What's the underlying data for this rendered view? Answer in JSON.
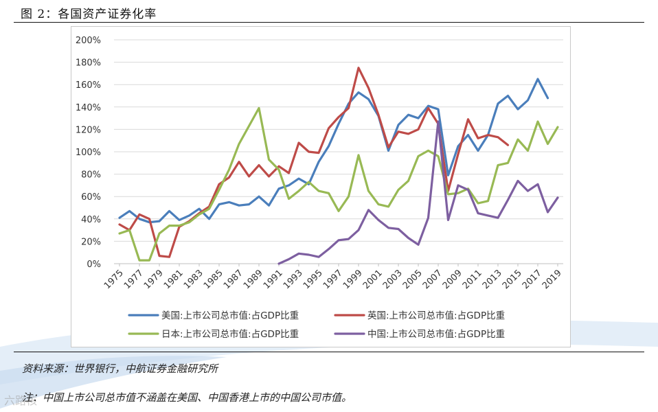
{
  "header": {
    "figure_title": "图 2：各国资产证券化率"
  },
  "footer": {
    "source": "资料来源：世界银行，中航证券金融研究所",
    "note": "注：中国上市公司总市值不涵盖在美国、中国香港上市的中国公司市值。",
    "watermark": "六路核"
  },
  "colors": {
    "us": "#4a7ebb",
    "uk": "#be4b48",
    "japan": "#98b954",
    "china": "#7d5fa0",
    "grid": "#d9d9d9",
    "axis": "#bfbfbf"
  },
  "chart_data": {
    "type": "line",
    "title": "",
    "xlabel": "",
    "ylabel": "",
    "ylim": [
      0,
      200
    ],
    "yticks": [
      "0%",
      "20%",
      "40%",
      "60%",
      "80%",
      "100%",
      "120%",
      "140%",
      "160%",
      "180%",
      "200%"
    ],
    "x_tick_labels": [
      "1975",
      "1977",
      "1979",
      "1981",
      "1983",
      "1985",
      "1987",
      "1989",
      "1991",
      "1993",
      "1995",
      "1997",
      "1999",
      "2001",
      "2003",
      "2005",
      "2007",
      "2009",
      "2011",
      "2013",
      "2015",
      "2017",
      "2019"
    ],
    "grid": "horizontal",
    "legend_position": "bottom",
    "x": [
      1975,
      1976,
      1977,
      1978,
      1979,
      1980,
      1981,
      1982,
      1983,
      1984,
      1985,
      1986,
      1987,
      1988,
      1989,
      1990,
      1991,
      1992,
      1993,
      1994,
      1995,
      1996,
      1997,
      1998,
      1999,
      2000,
      2001,
      2002,
      2003,
      2004,
      2005,
      2006,
      2007,
      2008,
      2009,
      2010,
      2011,
      2012,
      2013,
      2014,
      2015,
      2016,
      2017,
      2018,
      2019
    ],
    "series": [
      {
        "name": "美国:上市公司总市值:占GDP比重",
        "color_key": "us",
        "values": [
          41,
          47,
          40,
          37,
          38,
          47,
          39,
          43,
          49,
          40,
          53,
          55,
          52,
          53,
          60,
          52,
          67,
          70,
          76,
          71,
          91,
          105,
          125,
          143,
          153,
          147,
          132,
          101,
          124,
          133,
          130,
          141,
          138,
          79,
          105,
          115,
          101,
          115,
          143,
          150,
          138,
          146,
          165,
          148,
          null
        ]
      },
      {
        "name": "英国:上市公司总市值:占GDP比重",
        "color_key": "uk",
        "values": [
          35,
          30,
          44,
          40,
          7,
          6,
          33,
          38,
          45,
          51,
          71,
          77,
          91,
          78,
          88,
          78,
          87,
          81,
          108,
          100,
          99,
          121,
          131,
          139,
          175,
          157,
          133,
          104,
          118,
          116,
          120,
          139,
          125,
          65,
          98,
          129,
          112,
          115,
          113,
          106,
          null,
          null,
          null,
          null,
          null
        ]
      },
      {
        "name": "日本:上市公司总市值:占GDP比重",
        "color_key": "japan",
        "values": [
          27,
          30,
          3,
          3,
          27,
          34,
          34,
          37,
          44,
          49,
          66,
          84,
          107,
          123,
          139,
          93,
          84,
          58,
          65,
          73,
          65,
          63,
          47,
          60,
          97,
          65,
          53,
          51,
          66,
          74,
          96,
          101,
          96,
          62,
          63,
          67,
          54,
          56,
          88,
          90,
          111,
          101,
          127,
          107,
          122
        ]
      },
      {
        "name": "中国:上市公司总市值:占GDP比重",
        "color_key": "china",
        "values": [
          null,
          null,
          null,
          null,
          null,
          null,
          null,
          null,
          null,
          null,
          null,
          null,
          null,
          null,
          null,
          null,
          0,
          4,
          9,
          8,
          6,
          13,
          21,
          22,
          30,
          48,
          39,
          32,
          31,
          23,
          17,
          41,
          127,
          39,
          70,
          66,
          45,
          43,
          41,
          57,
          74,
          65,
          71,
          46,
          59
        ]
      }
    ]
  }
}
